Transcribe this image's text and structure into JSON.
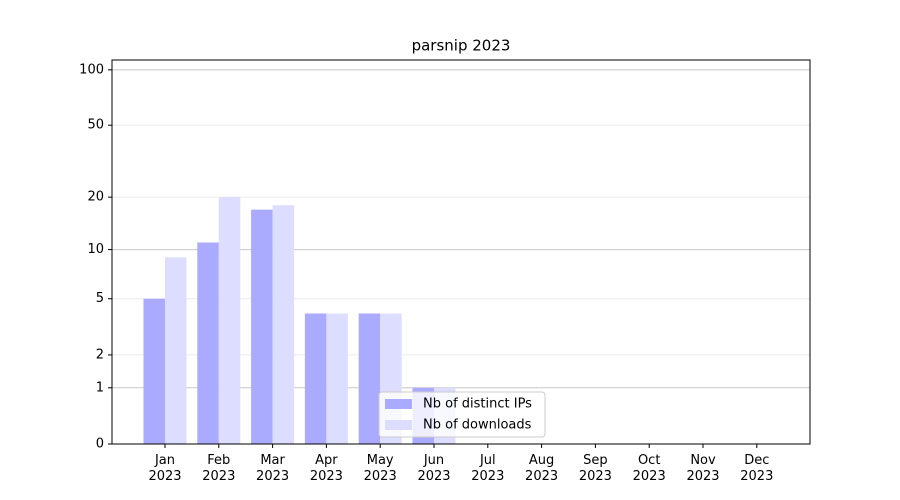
{
  "chart_data": {
    "type": "bar",
    "title": "parsnip 2023",
    "categories": [
      "Jan\n2023",
      "Feb\n2023",
      "Mar\n2023",
      "Apr\n2023",
      "May\n2023",
      "Jun\n2023",
      "Jul\n2023",
      "Aug\n2023",
      "Sep\n2023",
      "Oct\n2023",
      "Nov\n2023",
      "Dec\n2023"
    ],
    "series": [
      {
        "name": "Nb of distinct IPs",
        "color": "#aaaaff",
        "values": [
          5,
          11,
          17,
          4,
          4,
          1,
          0,
          0,
          0,
          0,
          0,
          0
        ]
      },
      {
        "name": "Nb of downloads",
        "color": "#ddddff",
        "values": [
          9,
          20,
          18,
          4,
          4,
          1,
          0,
          0,
          0,
          0,
          0,
          0
        ]
      }
    ],
    "yscale": "log1p",
    "ylim": [
      0,
      113
    ],
    "yticks": [
      0,
      1,
      2,
      5,
      10,
      20,
      50,
      100
    ],
    "grid": true,
    "legend": "lower center"
  }
}
